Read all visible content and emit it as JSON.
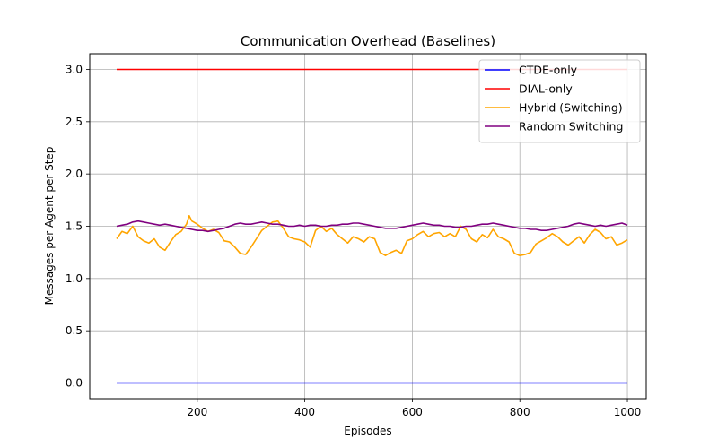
{
  "chart_data": {
    "type": "line",
    "title": "Communication Overhead (Baselines)",
    "xlabel": "Episodes",
    "ylabel": "Messages per Agent per Step",
    "xlim": [
      0,
      1035
    ],
    "ylim": [
      -0.15,
      3.15
    ],
    "xticks": [
      200,
      400,
      600,
      800,
      1000
    ],
    "yticks": [
      0.0,
      0.5,
      1.0,
      1.5,
      2.0,
      2.5,
      3.0
    ],
    "xtick_labels": [
      "200",
      "400",
      "600",
      "800",
      "1000"
    ],
    "ytick_labels": [
      "0.0",
      "0.5",
      "1.0",
      "1.5",
      "2.0",
      "2.5",
      "3.0"
    ],
    "grid": true,
    "legend_position": "top-right",
    "series": [
      {
        "name": "CTDE-only",
        "color": "#0000ff",
        "x": [
          50,
          1000
        ],
        "y": [
          0.0,
          0.0
        ]
      },
      {
        "name": "DIAL-only",
        "color": "#ff0000",
        "x": [
          50,
          1000
        ],
        "y": [
          3.0,
          3.0
        ]
      },
      {
        "name": "Hybrid (Switching)",
        "color": "#ffa500",
        "x": [
          50,
          60,
          70,
          80,
          90,
          100,
          110,
          120,
          130,
          140,
          150,
          160,
          170,
          180,
          185,
          190,
          200,
          210,
          220,
          230,
          240,
          250,
          260,
          270,
          280,
          290,
          300,
          310,
          320,
          330,
          340,
          350,
          360,
          370,
          380,
          390,
          400,
          410,
          420,
          430,
          440,
          450,
          460,
          470,
          480,
          490,
          500,
          510,
          520,
          530,
          540,
          550,
          560,
          570,
          580,
          590,
          600,
          610,
          620,
          630,
          640,
          650,
          660,
          670,
          680,
          690,
          700,
          710,
          720,
          730,
          740,
          750,
          760,
          770,
          780,
          790,
          800,
          810,
          820,
          830,
          840,
          850,
          860,
          870,
          880,
          890,
          900,
          910,
          920,
          930,
          940,
          950,
          960,
          970,
          980,
          990,
          1000
        ],
        "y": [
          1.38,
          1.45,
          1.43,
          1.5,
          1.4,
          1.36,
          1.34,
          1.38,
          1.3,
          1.27,
          1.35,
          1.42,
          1.45,
          1.52,
          1.6,
          1.55,
          1.52,
          1.48,
          1.45,
          1.47,
          1.44,
          1.36,
          1.35,
          1.3,
          1.24,
          1.23,
          1.3,
          1.38,
          1.46,
          1.5,
          1.54,
          1.55,
          1.48,
          1.4,
          1.38,
          1.37,
          1.35,
          1.3,
          1.46,
          1.5,
          1.45,
          1.48,
          1.42,
          1.38,
          1.34,
          1.4,
          1.38,
          1.35,
          1.4,
          1.38,
          1.25,
          1.22,
          1.25,
          1.27,
          1.24,
          1.36,
          1.38,
          1.42,
          1.45,
          1.4,
          1.43,
          1.44,
          1.4,
          1.43,
          1.4,
          1.5,
          1.47,
          1.38,
          1.35,
          1.42,
          1.39,
          1.47,
          1.4,
          1.38,
          1.35,
          1.24,
          1.22,
          1.23,
          1.25,
          1.33,
          1.36,
          1.39,
          1.43,
          1.4,
          1.35,
          1.32,
          1.36,
          1.4,
          1.34,
          1.42,
          1.47,
          1.44,
          1.38,
          1.4,
          1.32,
          1.34,
          1.37
        ]
      },
      {
        "name": "Random Switching",
        "color": "#800080",
        "x": [
          50,
          60,
          70,
          80,
          90,
          100,
          110,
          120,
          130,
          140,
          150,
          160,
          170,
          180,
          190,
          200,
          210,
          220,
          230,
          240,
          250,
          260,
          270,
          280,
          290,
          300,
          310,
          320,
          330,
          340,
          350,
          360,
          370,
          380,
          390,
          400,
          410,
          420,
          430,
          440,
          450,
          460,
          470,
          480,
          490,
          500,
          510,
          520,
          530,
          540,
          550,
          560,
          570,
          580,
          590,
          600,
          610,
          620,
          630,
          640,
          650,
          660,
          670,
          680,
          690,
          700,
          710,
          720,
          730,
          740,
          750,
          760,
          770,
          780,
          790,
          800,
          810,
          820,
          830,
          840,
          850,
          860,
          870,
          880,
          890,
          900,
          910,
          920,
          930,
          940,
          950,
          960,
          970,
          980,
          990,
          1000
        ],
        "y": [
          1.5,
          1.51,
          1.52,
          1.54,
          1.55,
          1.54,
          1.53,
          1.52,
          1.51,
          1.52,
          1.51,
          1.5,
          1.49,
          1.48,
          1.47,
          1.46,
          1.46,
          1.45,
          1.46,
          1.47,
          1.48,
          1.5,
          1.52,
          1.53,
          1.52,
          1.52,
          1.53,
          1.54,
          1.53,
          1.52,
          1.52,
          1.51,
          1.5,
          1.5,
          1.51,
          1.5,
          1.51,
          1.51,
          1.5,
          1.5,
          1.51,
          1.51,
          1.52,
          1.52,
          1.53,
          1.53,
          1.52,
          1.51,
          1.5,
          1.49,
          1.48,
          1.48,
          1.48,
          1.49,
          1.5,
          1.51,
          1.52,
          1.53,
          1.52,
          1.51,
          1.51,
          1.5,
          1.5,
          1.49,
          1.49,
          1.5,
          1.5,
          1.51,
          1.52,
          1.52,
          1.53,
          1.52,
          1.51,
          1.5,
          1.49,
          1.48,
          1.48,
          1.47,
          1.47,
          1.46,
          1.46,
          1.47,
          1.48,
          1.49,
          1.5,
          1.52,
          1.53,
          1.52,
          1.51,
          1.5,
          1.51,
          1.5,
          1.51,
          1.52,
          1.53,
          1.51
        ]
      }
    ]
  }
}
